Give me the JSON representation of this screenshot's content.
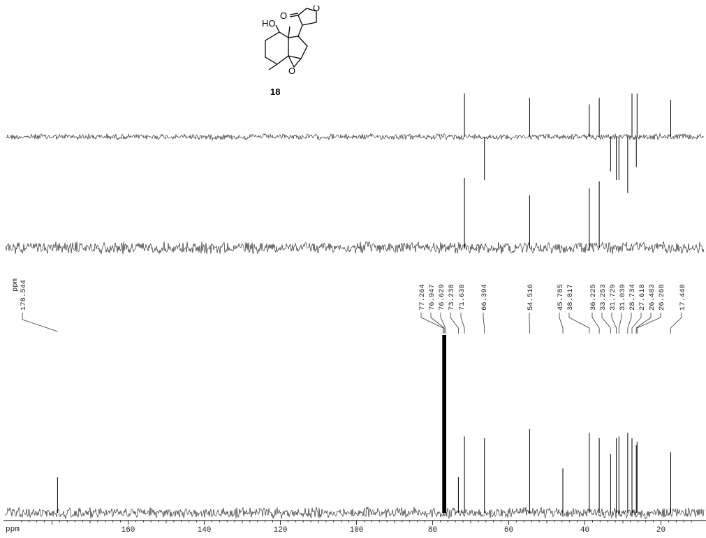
{
  "compound": {
    "label": "18",
    "substituent_labels": {
      "hydroxyl": "HO",
      "carbonyl_oxygen": "O",
      "ring_oxygen": "O",
      "epoxide_oxygen": "O"
    }
  },
  "chart_data": {
    "type": "line",
    "title": "",
    "xlabel": "ppm",
    "xlim": [
      190,
      10
    ],
    "x_ticks": [
      160,
      140,
      120,
      100,
      80,
      60,
      40,
      20
    ],
    "x_tick_labels": [
      "160",
      "140",
      "120",
      "100",
      "80",
      "60",
      "40",
      "20"
    ],
    "peak_list_header": "ppm",
    "peak_labels": [
      "178.544",
      "77.264",
      "76.947",
      "76.629",
      "73.238",
      "71.638",
      "66.394",
      "54.516",
      "45.785",
      "38.817",
      "36.225",
      "33.253",
      "31.729",
      "31.039",
      "28.734",
      "27.618",
      "26.483",
      "26.268",
      "17.440"
    ],
    "series": [
      {
        "spectrum": "dept135",
        "peaks": [
          {
            "ppm": 71.638,
            "height": 1.0
          },
          {
            "ppm": 66.394,
            "height": -1.0
          },
          {
            "ppm": 54.516,
            "height": 0.9
          },
          {
            "ppm": 38.817,
            "height": 0.75
          },
          {
            "ppm": 36.225,
            "height": 0.9
          },
          {
            "ppm": 33.253,
            "height": -0.8
          },
          {
            "ppm": 31.729,
            "height": -1.0
          },
          {
            "ppm": 31.039,
            "height": -1.0
          },
          {
            "ppm": 28.734,
            "height": -1.3
          },
          {
            "ppm": 27.618,
            "height": 1.0
          },
          {
            "ppm": 26.483,
            "height": -0.7
          },
          {
            "ppm": 26.268,
            "height": 1.0
          },
          {
            "ppm": 17.44,
            "height": 0.85
          }
        ]
      },
      {
        "spectrum": "dept90",
        "peaks": [
          {
            "ppm": 71.638,
            "height": 1.0
          },
          {
            "ppm": 54.516,
            "height": 0.75
          },
          {
            "ppm": 38.817,
            "height": 0.85
          },
          {
            "ppm": 36.225,
            "height": 0.95
          }
        ]
      },
      {
        "spectrum": "13C",
        "peaks": [
          {
            "ppm": 178.544,
            "height": 0.2
          },
          {
            "ppm": 77.264,
            "height": 1.0
          },
          {
            "ppm": 76.947,
            "height": 1.0
          },
          {
            "ppm": 76.629,
            "height": 1.0
          },
          {
            "ppm": 73.238,
            "height": 0.2
          },
          {
            "ppm": 71.638,
            "height": 0.43
          },
          {
            "ppm": 66.394,
            "height": 0.42
          },
          {
            "ppm": 54.516,
            "height": 0.47
          },
          {
            "ppm": 45.785,
            "height": 0.25
          },
          {
            "ppm": 38.817,
            "height": 0.45
          },
          {
            "ppm": 36.225,
            "height": 0.42
          },
          {
            "ppm": 33.253,
            "height": 0.33
          },
          {
            "ppm": 31.729,
            "height": 0.42
          },
          {
            "ppm": 31.039,
            "height": 0.43
          },
          {
            "ppm": 28.734,
            "height": 0.45
          },
          {
            "ppm": 27.618,
            "height": 0.42
          },
          {
            "ppm": 26.483,
            "height": 0.38
          },
          {
            "ppm": 26.268,
            "height": 0.4
          },
          {
            "ppm": 17.44,
            "height": 0.34
          }
        ]
      }
    ],
    "grid": false,
    "legend": "none"
  }
}
